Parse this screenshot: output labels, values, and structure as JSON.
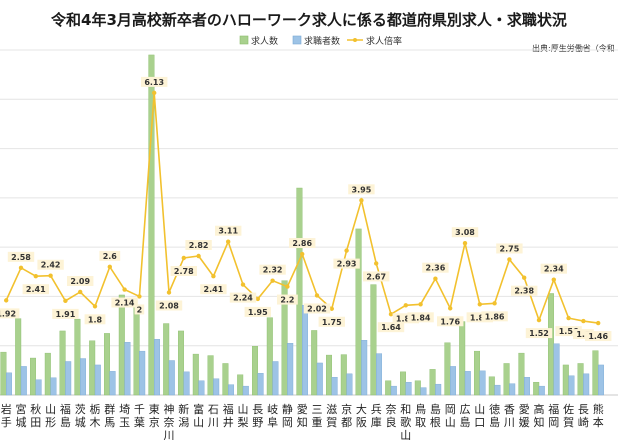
{
  "chart_data": {
    "type": "bar",
    "title": "令和4年3月高校新卒者のハローワーク求人に係る都道府県別求人・求職状況",
    "source": "出典:厚生労働省（令和",
    "categories": [
      [
        "岩",
        "手"
      ],
      [
        "宮",
        "城"
      ],
      [
        "秋",
        "田"
      ],
      [
        "山",
        "形"
      ],
      [
        "福",
        "島"
      ],
      [
        "茨",
        "城"
      ],
      [
        "栃",
        "木"
      ],
      [
        "群",
        "馬"
      ],
      [
        "埼",
        "玉"
      ],
      [
        "千",
        "葉"
      ],
      [
        "東",
        "京"
      ],
      [
        "神",
        "奈",
        "川"
      ],
      [
        "新",
        "潟"
      ],
      [
        "富",
        "山"
      ],
      [
        "石",
        "川"
      ],
      [
        "福",
        "井"
      ],
      [
        "山",
        "梨"
      ],
      [
        "長",
        "野"
      ],
      [
        "岐",
        "阜"
      ],
      [
        "静",
        "岡"
      ],
      [
        "愛",
        "知"
      ],
      [
        "三",
        "重"
      ],
      [
        "滋",
        "賀"
      ],
      [
        "京",
        "都"
      ],
      [
        "大",
        "阪"
      ],
      [
        "兵",
        "庫"
      ],
      [
        "奈",
        "良"
      ],
      [
        "和",
        "歌",
        "山"
      ],
      [
        "鳥",
        "取"
      ],
      [
        "島",
        "根"
      ],
      [
        "岡",
        "山"
      ],
      [
        "広",
        "島"
      ],
      [
        "山",
        "口"
      ],
      [
        "徳",
        "島"
      ],
      [
        "香",
        "川"
      ],
      [
        "愛",
        "媛"
      ],
      [
        "高",
        "知"
      ],
      [
        "福",
        "岡"
      ],
      [
        "佐",
        "賀"
      ],
      [
        "長",
        "崎"
      ],
      [
        "熊",
        "本"
      ]
    ],
    "series": [
      {
        "name": "求人数",
        "color": "#a9d18e",
        "stroke": "#8bbd6c",
        "values": [
          8700,
          15500,
          7500,
          8500,
          13000,
          15400,
          11000,
          12500,
          20300,
          17700,
          69000,
          14500,
          13000,
          8300,
          8000,
          6400,
          4100,
          9900,
          15700,
          23200,
          42000,
          13100,
          8100,
          8200,
          33700,
          22400,
          2900,
          4700,
          2900,
          5200,
          10600,
          14900,
          8900,
          3700,
          6400,
          8500,
          2600,
          20600,
          6100,
          6400,
          9000
        ]
      },
      {
        "name": "求職者数",
        "color": "#9dc3e6",
        "stroke": "#7aa9d4",
        "values": [
          4500,
          5800,
          3100,
          3500,
          6800,
          7400,
          6100,
          4800,
          10700,
          8900,
          11300,
          7000,
          4700,
          2900,
          3300,
          2100,
          1800,
          4400,
          6800,
          10500,
          18200,
          6500,
          3600,
          4300,
          11100,
          8400,
          1800,
          2600,
          1500,
          2200,
          5800,
          4800,
          4900,
          2000,
          2300,
          3600,
          1800,
          10400,
          3900,
          4300,
          6100
        ]
      },
      {
        "name": "求人倍率",
        "color": "#f2c12e",
        "values": [
          1.92,
          2.58,
          2.41,
          2.42,
          1.91,
          2.09,
          1.8,
          2.6,
          2.14,
          2.0,
          6.13,
          2.08,
          2.78,
          2.82,
          2.41,
          3.11,
          2.24,
          1.95,
          2.32,
          2.2,
          2.86,
          2.02,
          1.75,
          2.93,
          3.95,
          2.67,
          1.64,
          1.82,
          1.84,
          2.36,
          1.76,
          3.08,
          1.84,
          1.86,
          2.75,
          2.38,
          1.52,
          2.34,
          1.56,
          1.5,
          1.46
        ],
        "labels": [
          "1.92",
          "2.58",
          "2.41",
          "2.42",
          "1.91",
          "2.09",
          "1.8",
          "2.6",
          "2.14",
          "2",
          "6.13",
          "2.08",
          "2.78",
          "2.82",
          "2.41",
          "3.11",
          "2.24",
          "1.95",
          "2.32",
          "2.2",
          "2.86",
          "2.02",
          "1.75",
          "2.93",
          "3.95",
          "2.67",
          "1.64",
          "1.82",
          "1.84",
          "2.36",
          "1.76",
          "3.08",
          "1.84",
          "1.86",
          "2.75",
          "2.38",
          "1.52",
          "2.34",
          "1.56",
          "1.5",
          "1.46"
        ]
      }
    ],
    "ylim_bars": [
      0,
      70000
    ],
    "ylim_ratio": [
      0,
      7
    ],
    "legend_position": "top-center",
    "grid": true
  }
}
